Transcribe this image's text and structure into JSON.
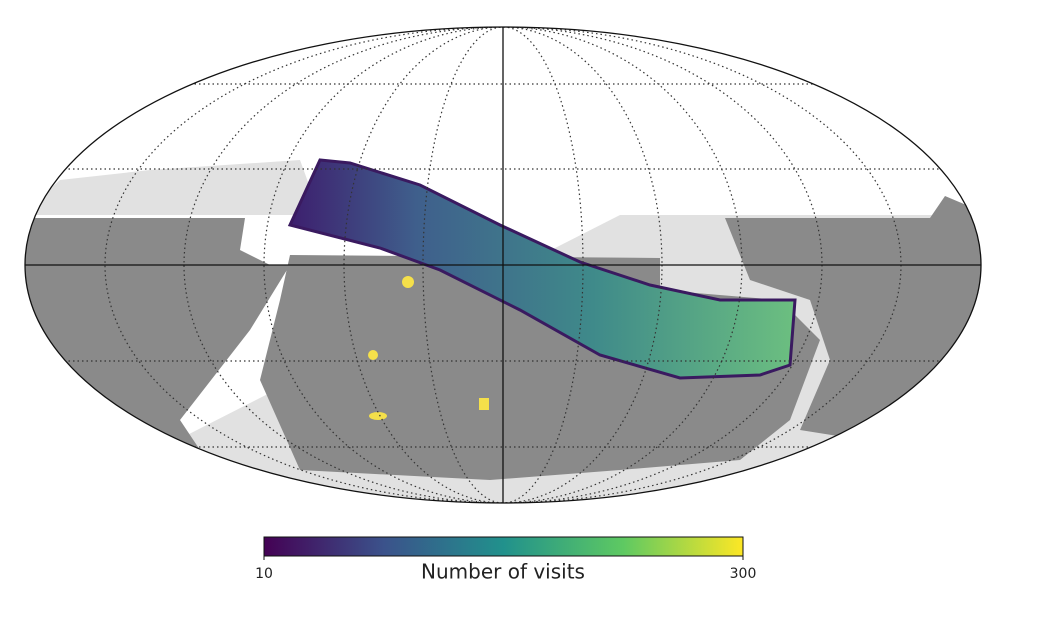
{
  "chart_data": {
    "type": "skymap",
    "colorbar": {
      "label": "Number of visits",
      "lim": [
        10,
        300
      ],
      "ticks": [
        10,
        300
      ],
      "cmap": "viridis"
    }
  }
}
